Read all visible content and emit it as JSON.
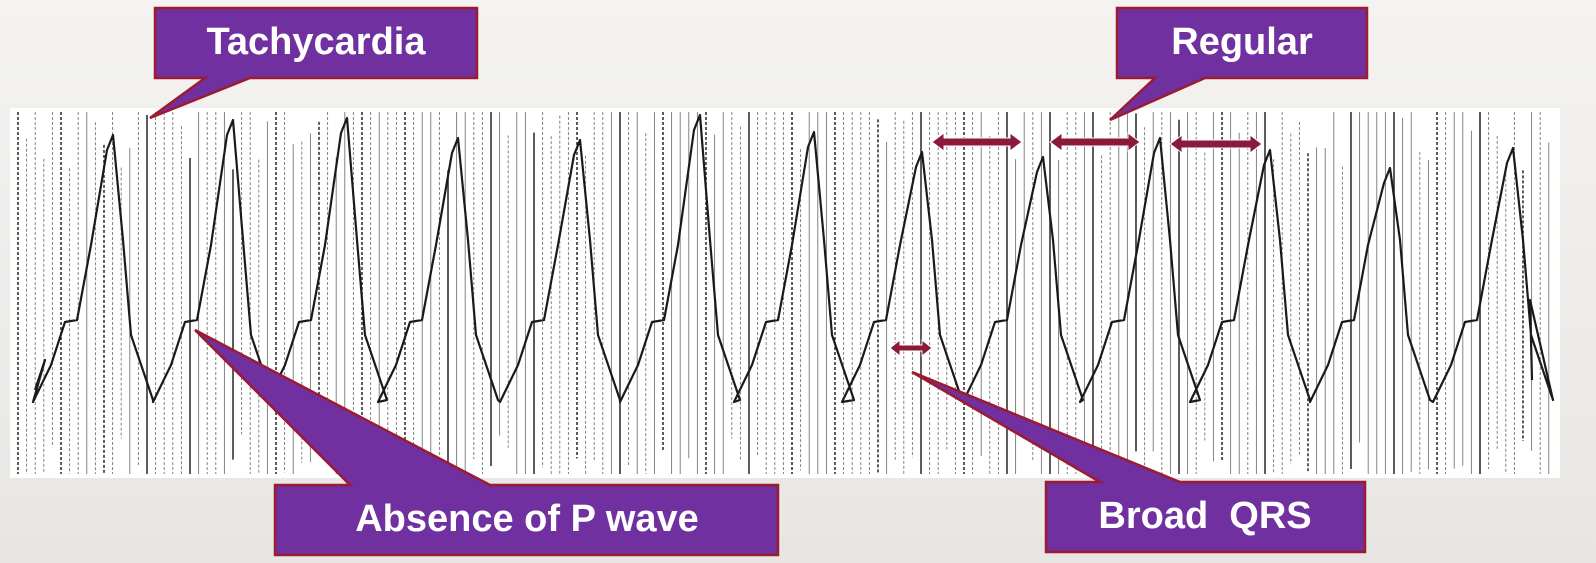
{
  "callouts": {
    "tachycardia": "Tachycardia",
    "regular": "Regular",
    "absence_p_wave": "Absence of P wave",
    "broad_qrs": "Broad  QRS"
  }
}
